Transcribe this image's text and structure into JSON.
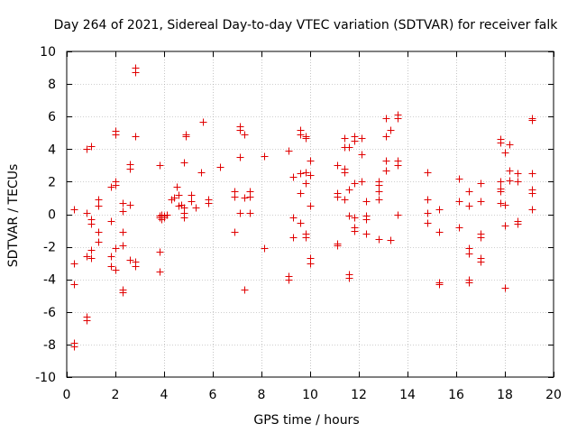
{
  "chart_data": {
    "type": "scatter",
    "title": "Day 264 of 2021, Sidereal Day-to-day VTEC variation (SDTVAR) for receiver falk",
    "xlabel": "GPS time / hours",
    "ylabel": "SDTVAR / TECUs",
    "xlim": [
      0,
      20
    ],
    "ylim": [
      -10,
      10
    ],
    "xticks": [
      0,
      2,
      4,
      6,
      8,
      10,
      12,
      14,
      16,
      18,
      20
    ],
    "yticks": [
      -10,
      -8,
      -6,
      -4,
      -2,
      0,
      2,
      4,
      6,
      8,
      10
    ],
    "grid": true,
    "marker": "plus",
    "color": "#e00000",
    "series": [
      {
        "name": "SDTVAR",
        "points": [
          [
            0.3,
            0.3
          ],
          [
            0.3,
            -3.0
          ],
          [
            0.3,
            -4.3
          ],
          [
            0.3,
            -7.9
          ],
          [
            0.3,
            -8.1
          ],
          [
            0.8,
            4.0
          ],
          [
            0.8,
            0.1
          ],
          [
            0.8,
            -2.6
          ],
          [
            0.8,
            -6.3
          ],
          [
            0.8,
            -6.5
          ],
          [
            1.0,
            4.2
          ],
          [
            1.0,
            -0.3
          ],
          [
            1.0,
            -0.6
          ],
          [
            1.0,
            -2.2
          ],
          [
            1.0,
            -2.7
          ],
          [
            1.3,
            0.9
          ],
          [
            1.3,
            0.5
          ],
          [
            1.3,
            -1.1
          ],
          [
            1.3,
            -1.7
          ],
          [
            1.8,
            1.7
          ],
          [
            1.8,
            -0.4
          ],
          [
            1.8,
            -2.6
          ],
          [
            1.8,
            -3.2
          ],
          [
            2.0,
            5.1
          ],
          [
            2.0,
            4.9
          ],
          [
            2.0,
            2.0
          ],
          [
            2.0,
            1.8
          ],
          [
            2.0,
            -2.1
          ],
          [
            2.0,
            -3.4
          ],
          [
            2.3,
            0.7
          ],
          [
            2.3,
            0.2
          ],
          [
            2.3,
            -1.1
          ],
          [
            2.3,
            -1.9
          ],
          [
            2.3,
            -4.6
          ],
          [
            2.3,
            -4.8
          ],
          [
            2.6,
            3.1
          ],
          [
            2.6,
            2.8
          ],
          [
            2.6,
            0.6
          ],
          [
            2.6,
            -2.8
          ],
          [
            2.8,
            9.0
          ],
          [
            2.8,
            8.7
          ],
          [
            2.8,
            4.8
          ],
          [
            2.8,
            -2.9
          ],
          [
            2.8,
            -3.2
          ],
          [
            3.8,
            3.0
          ],
          [
            3.8,
            -0.1
          ],
          [
            3.8,
            -0.2
          ],
          [
            3.8,
            -2.3
          ],
          [
            3.8,
            -3.5
          ],
          [
            3.9,
            0.0
          ],
          [
            3.9,
            -0.3
          ],
          [
            4.0,
            -0.1
          ],
          [
            4.0,
            -0.2
          ],
          [
            4.1,
            0.0
          ],
          [
            4.3,
            0.9
          ],
          [
            4.4,
            1.0
          ],
          [
            4.5,
            1.7
          ],
          [
            4.6,
            1.2
          ],
          [
            4.6,
            0.5
          ],
          [
            4.7,
            0.6
          ],
          [
            4.8,
            0.4
          ],
          [
            4.8,
            0.1
          ],
          [
            4.8,
            -0.2
          ],
          [
            4.8,
            3.2
          ],
          [
            4.9,
            4.9
          ],
          [
            4.9,
            4.8
          ],
          [
            5.1,
            1.2
          ],
          [
            5.1,
            0.8
          ],
          [
            5.3,
            0.4
          ],
          [
            5.5,
            2.6
          ],
          [
            5.6,
            5.7
          ],
          [
            5.8,
            0.9
          ],
          [
            5.8,
            0.7
          ],
          [
            6.3,
            2.9
          ],
          [
            6.9,
            1.4
          ],
          [
            6.9,
            1.1
          ],
          [
            6.9,
            -1.1
          ],
          [
            7.1,
            5.4
          ],
          [
            7.1,
            5.2
          ],
          [
            7.1,
            3.5
          ],
          [
            7.1,
            0.1
          ],
          [
            7.3,
            4.9
          ],
          [
            7.3,
            1.0
          ],
          [
            7.3,
            -4.6
          ],
          [
            7.5,
            1.4
          ],
          [
            7.5,
            1.1
          ],
          [
            7.5,
            0.1
          ],
          [
            8.1,
            3.6
          ],
          [
            8.1,
            -2.1
          ],
          [
            9.1,
            3.9
          ],
          [
            9.1,
            -3.8
          ],
          [
            9.1,
            -4.0
          ],
          [
            9.3,
            2.3
          ],
          [
            9.3,
            -0.2
          ],
          [
            9.3,
            -1.4
          ],
          [
            9.6,
            5.2
          ],
          [
            9.6,
            4.9
          ],
          [
            9.6,
            2.5
          ],
          [
            9.6,
            1.3
          ],
          [
            9.6,
            -0.5
          ],
          [
            9.8,
            4.8
          ],
          [
            9.8,
            4.7
          ],
          [
            9.8,
            2.6
          ],
          [
            9.8,
            1.9
          ],
          [
            9.8,
            -1.2
          ],
          [
            9.8,
            -1.4
          ],
          [
            10.0,
            3.3
          ],
          [
            10.0,
            2.4
          ],
          [
            10.0,
            0.5
          ],
          [
            10.0,
            -2.7
          ],
          [
            10.0,
            -3.0
          ],
          [
            11.1,
            3.0
          ],
          [
            11.1,
            1.3
          ],
          [
            11.1,
            1.1
          ],
          [
            11.1,
            -1.8
          ],
          [
            11.1,
            -1.9
          ],
          [
            11.4,
            4.7
          ],
          [
            11.4,
            4.1
          ],
          [
            11.4,
            2.8
          ],
          [
            11.4,
            2.6
          ],
          [
            11.4,
            0.9
          ],
          [
            11.6,
            4.1
          ],
          [
            11.6,
            1.5
          ],
          [
            11.6,
            -0.1
          ],
          [
            11.6,
            -3.7
          ],
          [
            11.6,
            -3.9
          ],
          [
            11.8,
            4.8
          ],
          [
            11.8,
            4.5
          ],
          [
            11.8,
            1.9
          ],
          [
            11.8,
            -0.2
          ],
          [
            11.8,
            -0.8
          ],
          [
            11.8,
            -1.0
          ],
          [
            12.1,
            4.7
          ],
          [
            12.1,
            3.7
          ],
          [
            12.1,
            2.0
          ],
          [
            12.3,
            0.8
          ],
          [
            12.3,
            -0.1
          ],
          [
            12.3,
            -0.3
          ],
          [
            12.3,
            -1.2
          ],
          [
            12.8,
            2.0
          ],
          [
            12.8,
            1.8
          ],
          [
            12.8,
            1.4
          ],
          [
            12.8,
            0.9
          ],
          [
            12.8,
            -1.5
          ],
          [
            13.1,
            5.9
          ],
          [
            13.1,
            4.8
          ],
          [
            13.1,
            3.3
          ],
          [
            13.1,
            2.7
          ],
          [
            13.3,
            5.2
          ],
          [
            13.3,
            -1.6
          ],
          [
            13.6,
            6.1
          ],
          [
            13.6,
            5.9
          ],
          [
            13.6,
            3.3
          ],
          [
            13.6,
            3.0
          ],
          [
            13.6,
            0.0
          ],
          [
            14.8,
            2.6
          ],
          [
            14.8,
            0.9
          ],
          [
            14.8,
            0.1
          ],
          [
            14.8,
            -0.5
          ],
          [
            15.3,
            0.3
          ],
          [
            15.3,
            -1.1
          ],
          [
            15.3,
            -4.2
          ],
          [
            15.3,
            -4.3
          ],
          [
            16.1,
            2.2
          ],
          [
            16.1,
            0.8
          ],
          [
            16.1,
            -0.8
          ],
          [
            16.5,
            1.4
          ],
          [
            16.5,
            0.5
          ],
          [
            16.5,
            -2.1
          ],
          [
            16.5,
            -2.4
          ],
          [
            16.5,
            -4.0
          ],
          [
            16.5,
            -4.2
          ],
          [
            17.0,
            1.9
          ],
          [
            17.0,
            0.8
          ],
          [
            17.0,
            -1.2
          ],
          [
            17.0,
            -1.4
          ],
          [
            17.0,
            -2.7
          ],
          [
            17.0,
            -2.9
          ],
          [
            17.8,
            4.6
          ],
          [
            17.8,
            4.4
          ],
          [
            17.8,
            2.0
          ],
          [
            17.8,
            1.6
          ],
          [
            17.8,
            1.4
          ],
          [
            17.8,
            0.7
          ],
          [
            18.0,
            3.8
          ],
          [
            18.0,
            0.6
          ],
          [
            18.0,
            -0.7
          ],
          [
            18.0,
            -4.5
          ],
          [
            18.2,
            4.3
          ],
          [
            18.2,
            2.7
          ],
          [
            18.2,
            2.1
          ],
          [
            18.5,
            2.5
          ],
          [
            18.5,
            2.0
          ],
          [
            18.5,
            -0.4
          ],
          [
            18.5,
            -0.6
          ],
          [
            19.1,
            5.9
          ],
          [
            19.1,
            5.8
          ],
          [
            19.1,
            2.5
          ],
          [
            19.1,
            1.5
          ],
          [
            19.1,
            1.3
          ],
          [
            19.1,
            0.3
          ]
        ]
      }
    ]
  }
}
